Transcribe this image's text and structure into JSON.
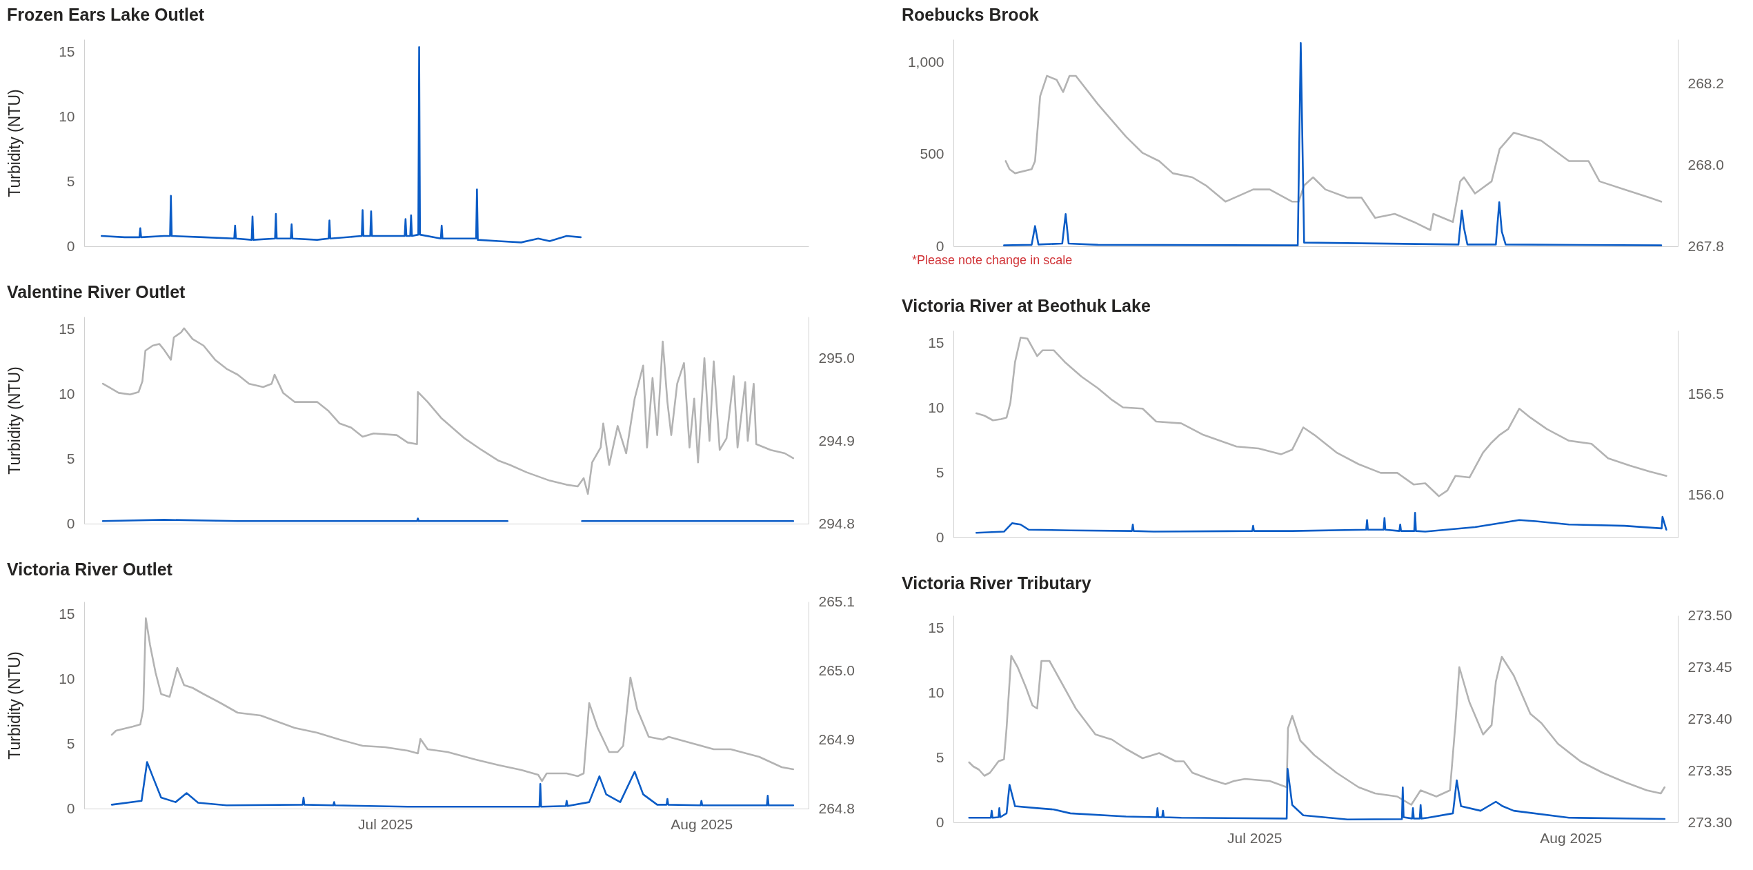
{
  "chart_data": [
    {
      "type": "line",
      "title": "Frozen Ears Lake Outlet",
      "ylabel": "Turbidity (NTU)",
      "tick_labels": "y",
      "xlim": [
        "2025-06-01T12:00",
        "2025-08-11T12:00"
      ],
      "ylim": [
        0,
        16
      ],
      "yticks": [
        0,
        5,
        10,
        15
      ],
      "series": [
        {
          "color": "#0b5cc6",
          "x": [
            "2025-06-03T05:00",
            "2025-06-05T11:00",
            "2025-06-06T22:00",
            "2025-06-07T00:00",
            "2025-06-07T02:00",
            "2025-06-09T08:00",
            "2025-06-09T22:00",
            "2025-06-10T00:00",
            "2025-06-10T02:00",
            "2025-06-13T05:00",
            "2025-06-16T05:00",
            "2025-06-16T07:00",
            "2025-06-16T09:00",
            "2025-06-17T22:00",
            "2025-06-18T00:00",
            "2025-06-18T02:00",
            "2025-06-20T05:00",
            "2025-06-20T07:00",
            "2025-06-20T09:00",
            "2025-06-21T18:00",
            "2025-06-21T20:00",
            "2025-06-21T22:00",
            "2025-06-24T08:00",
            "2025-06-25T11:00",
            "2025-06-25T13:00",
            "2025-06-25T15:00",
            "2025-06-28T17:00",
            "2025-06-28T19:00",
            "2025-06-28T21:00",
            "2025-06-29T13:00",
            "2025-06-29T15:00",
            "2025-06-29T17:00",
            "2025-07-02T22:00",
            "2025-07-03T00:00",
            "2025-07-03T02:00",
            "2025-07-03T11:00",
            "2025-07-03T13:00",
            "2025-07-03T15:00",
            "2025-07-04T06:00",
            "2025-07-04T08:00",
            "2025-07-04T10:00",
            "2025-07-06T11:00",
            "2025-07-06T13:00",
            "2025-07-06T15:00",
            "2025-07-09T22:00",
            "2025-07-10T00:00",
            "2025-07-10T02:00",
            "2025-07-12T03:00",
            "2025-07-14T08:00",
            "2025-07-16T00:00",
            "2025-07-17T03:00",
            "2025-07-18T19:00",
            "2025-07-20T04:00"
          ],
          "values": [
            0.8,
            0.7,
            0.7,
            1.4,
            0.7,
            0.8,
            0.8,
            3.9,
            0.8,
            0.7,
            0.6,
            1.6,
            0.6,
            0.5,
            2.3,
            0.5,
            0.6,
            2.5,
            0.6,
            0.6,
            1.7,
            0.6,
            0.5,
            0.6,
            2.0,
            0.6,
            0.8,
            2.8,
            0.8,
            0.8,
            2.7,
            0.8,
            0.8,
            2.1,
            0.8,
            0.8,
            2.4,
            0.8,
            0.9,
            15.4,
            0.9,
            0.6,
            1.6,
            0.6,
            0.6,
            4.4,
            0.5,
            0.4,
            0.3,
            0.6,
            0.4,
            0.8,
            0.7
          ]
        }
      ]
    },
    {
      "type": "line",
      "title": "Roebucks Brook",
      "tick_labels": "y",
      "xlim": [
        "2025-06-01T12:00",
        "2025-08-11T12:00"
      ],
      "ylim": [
        0,
        1125
      ],
      "yticks": [
        0,
        500,
        {
          "value": 1000,
          "label": "1,000"
        }
      ],
      "y2lim": [
        267.8,
        268.31
      ],
      "y2ticks": [
        267.8,
        {
          "value": 268,
          "label": "268.0"
        },
        268.2
      ],
      "annotations": [
        "*Please note change in scale"
      ],
      "series": [
        {
          "color": "#b3b3b3",
          "axis": "y2",
          "x": [
            "2025-06-06T15:00",
            "2025-06-07T00:00",
            "2025-06-07T13:00",
            "2025-06-09T04:00",
            "2025-06-09T12:00",
            "2025-06-10T00:00",
            "2025-06-10T16:00",
            "2025-06-11T15:00",
            "2025-06-12T06:00",
            "2025-06-12T21:00",
            "2025-06-13T12:00",
            "2025-06-15T16:00",
            "2025-06-18T10:00",
            "2025-06-20T01:00",
            "2025-06-21T16:00",
            "2025-06-23T00:00",
            "2025-06-24T22:00",
            "2025-06-26T06:00",
            "2025-06-28T04:00",
            "2025-06-30T21:00",
            "2025-07-02T12:00",
            "2025-07-04T17:00",
            "2025-07-05T08:00",
            "2025-07-05T21:00",
            "2025-07-06T18:00",
            "2025-07-07T23:00",
            "2025-07-10T03:00",
            "2025-07-11T12:00",
            "2025-07-12T20:00",
            "2025-07-14T18:00",
            "2025-07-16T15:00",
            "2025-07-18T06:00",
            "2025-07-18T13:00",
            "2025-07-20T11:00",
            "2025-07-21T04:00",
            "2025-07-21T13:00",
            "2025-07-22T15:00",
            "2025-07-24T06:00",
            "2025-07-25T01:00",
            "2025-07-26T10:00",
            "2025-07-29T03:00",
            "2025-07-31T20:00",
            "2025-08-02T18:00",
            "2025-08-03T20:00",
            "2025-08-06T07:00",
            "2025-08-08T18:00",
            "2025-08-09T21:00"
          ],
          "values": [
            268.01,
            267.99,
            267.98,
            267.99,
            268.01,
            268.17,
            268.22,
            268.21,
            268.18,
            268.22,
            268.22,
            268.15,
            268.07,
            268.03,
            268.01,
            267.98,
            267.97,
            267.95,
            267.91,
            267.94,
            267.94,
            267.91,
            267.91,
            267.95,
            267.97,
            267.94,
            267.92,
            267.92,
            267.87,
            267.88,
            267.86,
            267.84,
            267.88,
            267.86,
            267.96,
            267.97,
            267.93,
            267.96,
            268.04,
            268.08,
            268.06,
            268.01,
            268.01,
            267.96,
            267.94,
            267.92,
            267.91
          ]
        },
        {
          "color": "#0b5cc6",
          "x": [
            "2025-06-06T11:00",
            "2025-06-09T04:00",
            "2025-06-09T12:00",
            "2025-06-09T20:00",
            "2025-06-12T04:00",
            "2025-06-12T12:00",
            "2025-06-12T19:00",
            "2025-06-15T16:00",
            "2025-07-05T06:00",
            "2025-07-05T13:00",
            "2025-07-05T21:00",
            "2025-07-21T00:00",
            "2025-07-21T08:00",
            "2025-07-21T13:00",
            "2025-07-21T21:00",
            "2025-07-24T16:00",
            "2025-07-25T00:00",
            "2025-07-25T06:00",
            "2025-07-25T15:00",
            "2025-08-09T21:00"
          ],
          "values": [
            5,
            8,
            110,
            10,
            15,
            175,
            15,
            8,
            5,
            1105,
            20,
            10,
            195,
            100,
            10,
            10,
            240,
            80,
            10,
            5
          ]
        }
      ]
    },
    {
      "type": "line",
      "title": "Valentine River Outlet",
      "ylabel": "Turbidity (NTU)",
      "tick_labels": "y",
      "xlim": [
        "2025-06-01T12:00",
        "2025-08-11T12:00"
      ],
      "ylim": [
        0,
        16
      ],
      "yticks": [
        0,
        5,
        10,
        15
      ],
      "y2lim": [
        294.8,
        295.05
      ],
      "y2ticks": [
        294.8,
        294.9,
        {
          "value": 295,
          "label": "295.0"
        }
      ],
      "series": [
        {
          "color": "#b3b3b3",
          "axis": "y2",
          "x": [
            "2025-06-03T08:00",
            "2025-06-04T01:00",
            "2025-06-04T21:00",
            "2025-06-06T00:00",
            "2025-06-06T20:00",
            "2025-06-07T05:00",
            "2025-06-07T12:00",
            "2025-06-08T05:00",
            "2025-06-08T21:00",
            "2025-06-09T08:00",
            "2025-06-10T00:00",
            "2025-06-10T07:00",
            "2025-06-11T00:00",
            "2025-06-11T07:00",
            "2025-06-12T03:00",
            "2025-06-13T05:00",
            "2025-06-14T08:00",
            "2025-06-15T11:00",
            "2025-06-16T13:00",
            "2025-06-17T16:00",
            "2025-06-19T01:00",
            "2025-06-19T21:00",
            "2025-06-20T04:00",
            "2025-06-21T00:00",
            "2025-06-22T03:00",
            "2025-06-24T08:00",
            "2025-06-25T11:00",
            "2025-06-26T13:00",
            "2025-06-27T16:00",
            "2025-06-28T19:00",
            "2025-06-29T21:00",
            "2025-07-02T03:00",
            "2025-07-03T05:00",
            "2025-07-04T03:00",
            "2025-07-04T05:00",
            "2025-07-05T04:00",
            "2025-07-06T13:00",
            "2025-07-08T19:00",
            "2025-07-10T11:00",
            "2025-07-12T03:00",
            "2025-07-13T05:00",
            "2025-07-14T21:00",
            "2025-07-17T03:00",
            "2025-07-18T19:00",
            "2025-07-19T21:00",
            "2025-07-20T11:00",
            "2025-07-20T21:00",
            "2025-07-21T07:00",
            "2025-07-22T03:00",
            "2025-07-22T09:00",
            "2025-07-22T23:00",
            "2025-07-23T19:00",
            "2025-07-24T15:00",
            "2025-07-25T11:00",
            "2025-07-26T07:00",
            "2025-07-26T16:00",
            "2025-07-27T05:00",
            "2025-07-27T16:00",
            "2025-07-28T05:00",
            "2025-07-28T16:00",
            "2025-07-29T01:00",
            "2025-07-29T15:00",
            "2025-07-30T07:00",
            "2025-07-30T20:00",
            "2025-07-31T07:00",
            "2025-07-31T16:00",
            "2025-08-01T07:00",
            "2025-08-01T19:00",
            "2025-08-02T05:00",
            "2025-08-02T19:00",
            "2025-08-03T11:00",
            "2025-08-04T04:00",
            "2025-08-04T13:00",
            "2025-08-05T07:00",
            "2025-08-05T13:00",
            "2025-08-06T03:00",
            "2025-08-06T09:00",
            "2025-08-07T19:00",
            "2025-08-09T04:00",
            "2025-08-10T00:00"
          ],
          "values": [
            294.969,
            294.964,
            294.958,
            294.956,
            294.959,
            294.972,
            295.009,
            295.015,
            295.017,
            295.01,
            294.998,
            295.025,
            295.031,
            295.036,
            295.023,
            295.015,
            294.998,
            294.987,
            294.98,
            294.969,
            294.965,
            294.969,
            294.98,
            294.958,
            294.947,
            294.947,
            294.936,
            294.921,
            294.916,
            294.905,
            294.909,
            294.907,
            294.898,
            294.896,
            294.959,
            294.947,
            294.927,
            294.903,
            294.889,
            294.876,
            294.871,
            294.862,
            294.852,
            294.847,
            294.845,
            294.855,
            294.836,
            294.874,
            294.892,
            294.921,
            294.871,
            294.918,
            294.885,
            294.951,
            294.991,
            294.892,
            294.976,
            294.907,
            295.02,
            294.947,
            294.907,
            294.969,
            294.994,
            294.892,
            294.951,
            294.874,
            295.0,
            294.9,
            294.996,
            294.889,
            294.903,
            294.978,
            294.892,
            294.971,
            294.9,
            294.969,
            294.896,
            294.889,
            294.885,
            294.879
          ]
        },
        {
          "color": "#0b5cc6",
          "x": [
            "2025-06-03T08:00",
            "2025-06-09T08:00",
            "2025-06-16T13:00",
            "2025-07-04T03:00",
            "2025-07-04T05:00",
            "2025-07-04T07:00",
            "2025-07-13T00:00",
            "2025-07-16T12:00",
            "2025-07-20T07:00",
            "2025-07-31T00:00",
            "2025-08-10T00:00"
          ],
          "values": [
            0.2,
            0.3,
            0.2,
            0.2,
            0.4,
            0.2,
            0.2,
            null,
            0.2,
            0.2,
            0.2
          ]
        }
      ]
    },
    {
      "type": "line",
      "title": "Victoria River at Beothuk Lake",
      "tick_labels": "y",
      "xlim": [
        "2025-06-01T12:00",
        "2025-08-11T12:00"
      ],
      "ylim": [
        0,
        16
      ],
      "yticks": [
        0,
        5,
        10,
        15
      ],
      "y2lim": [
        155.79,
        156.815
      ],
      "y2ticks": [
        {
          "value": 156,
          "label": "156.0"
        },
        156.5
      ],
      "series": [
        {
          "color": "#b3b3b3",
          "axis": "y2",
          "x": [
            "2025-06-03T18:00",
            "2025-06-04T13:00",
            "2025-06-05T09:00",
            "2025-06-06T04:00",
            "2025-06-06T17:00",
            "2025-06-07T02:00",
            "2025-06-07T13:00",
            "2025-06-08T02:00",
            "2025-06-08T18:00",
            "2025-06-09T17:00",
            "2025-06-10T06:00",
            "2025-06-11T08:00",
            "2025-06-12T10:00",
            "2025-06-14T01:00",
            "2025-06-15T16:00",
            "2025-06-17T01:00",
            "2025-06-18T03:00",
            "2025-06-20T01:00",
            "2025-06-21T09:00",
            "2025-06-23T20:00",
            "2025-06-26T00:00",
            "2025-06-27T15:00",
            "2025-06-29T06:00",
            "2025-07-01T10:00",
            "2025-07-03T15:00",
            "2025-07-04T17:00",
            "2025-07-05T19:00",
            "2025-07-06T21:00",
            "2025-07-09T01:00",
            "2025-07-11T05:00",
            "2025-07-13T09:00",
            "2025-07-15T00:00",
            "2025-07-16T15:00",
            "2025-07-17T18:00",
            "2025-07-19T02:00",
            "2025-07-19T22:00",
            "2025-07-20T17:00",
            "2025-07-22T02:00",
            "2025-07-23T10:00",
            "2025-07-24T06:00",
            "2025-07-25T01:00",
            "2025-07-25T21:00",
            "2025-07-26T23:00",
            "2025-07-28T01:00",
            "2025-07-29T16:00",
            "2025-07-31T20:00",
            "2025-08-03T01:00",
            "2025-08-04T16:00",
            "2025-08-06T20:00",
            "2025-08-08T18:00",
            "2025-08-10T09:00"
          ],
          "values": [
            156.405,
            156.393,
            156.37,
            156.376,
            156.384,
            156.457,
            156.659,
            156.78,
            156.775,
            156.688,
            156.717,
            156.717,
            156.659,
            156.587,
            156.529,
            156.471,
            156.434,
            156.428,
            156.364,
            156.355,
            156.298,
            156.269,
            156.24,
            156.231,
            156.202,
            156.225,
            156.335,
            156.298,
            156.211,
            156.153,
            156.11,
            156.11,
            156.052,
            156.058,
            155.994,
            156.023,
            156.095,
            156.087,
            156.211,
            156.26,
            156.298,
            156.327,
            156.428,
            156.384,
            156.327,
            156.269,
            156.254,
            156.182,
            156.145,
            156.116,
            156.095
          ]
        },
        {
          "color": "#0b5cc6",
          "x": [
            "2025-06-03T18:00",
            "2025-06-06T11:00",
            "2025-06-07T06:00",
            "2025-06-08T02:00",
            "2025-06-08T21:00",
            "2025-06-12T23:00",
            "2025-06-19T00:00",
            "2025-06-19T02:00",
            "2025-06-19T04:00",
            "2025-06-21T03:00",
            "2025-06-30T19:00",
            "2025-06-30T21:00",
            "2025-06-30T23:00",
            "2025-07-04T17:00",
            "2025-07-11T23:00",
            "2025-07-12T01:00",
            "2025-07-12T03:00",
            "2025-07-13T16:00",
            "2025-07-13T18:00",
            "2025-07-13T20:00",
            "2025-07-15T05:00",
            "2025-07-15T07:00",
            "2025-07-15T09:00",
            "2025-07-16T16:00",
            "2025-07-16T18:00",
            "2025-07-16T20:00",
            "2025-07-17T18:00",
            "2025-07-22T15:00",
            "2025-07-26T23:00",
            "2025-07-28T14:00",
            "2025-07-31T20:00",
            "2025-08-06T07:00",
            "2025-08-09T22:00",
            "2025-08-10T00:00",
            "2025-08-10T09:00"
          ],
          "values": [
            0.36,
            0.45,
            1.1,
            1.0,
            0.6,
            0.55,
            0.5,
            1.0,
            0.5,
            0.45,
            0.5,
            0.9,
            0.5,
            0.5,
            0.6,
            1.35,
            0.6,
            0.6,
            1.5,
            0.6,
            0.5,
            1.0,
            0.5,
            0.5,
            1.9,
            0.5,
            0.45,
            0.8,
            1.35,
            1.25,
            1.0,
            0.9,
            0.7,
            1.6,
            0.6
          ]
        }
      ]
    },
    {
      "type": "line",
      "title": "Victoria River Outlet",
      "ylabel": "Turbidity (NTU)",
      "xlim": [
        "2025-06-01T12:00",
        "2025-08-11T12:00"
      ],
      "xticks": [
        {
          "value": "2025-07-01",
          "label": "Jul 2025"
        },
        {
          "value": "2025-08-01",
          "label": "Aug 2025"
        }
      ],
      "ylim": [
        0,
        16
      ],
      "yticks": [
        0,
        5,
        10,
        15
      ],
      "y2lim": [
        264.8,
        265.1
      ],
      "y2ticks": [
        264.8,
        264.9,
        {
          "value": 265,
          "label": "265.0"
        },
        265.1
      ],
      "series": [
        {
          "color": "#b3b3b3",
          "axis": "y2",
          "x": [
            "2025-06-04T05:00",
            "2025-06-04T15:00",
            "2025-06-05T11:00",
            "2025-06-06T07:00",
            "2025-06-07T00:00",
            "2025-06-07T07:00",
            "2025-06-07T13:00",
            "2025-06-07T23:00",
            "2025-06-08T12:00",
            "2025-06-09T01:00",
            "2025-06-09T21:00",
            "2025-06-10T15:00",
            "2025-06-11T07:00",
            "2025-06-12T03:00",
            "2025-06-13T05:00",
            "2025-06-14T21:00",
            "2025-06-16T13:00",
            "2025-06-18T19:00",
            "2025-06-20T11:00",
            "2025-06-22T03:00",
            "2025-06-24T08:00",
            "2025-06-26T13:00",
            "2025-06-28T19:00",
            "2025-07-01T00:00",
            "2025-07-03T05:00",
            "2025-07-04T05:00",
            "2025-07-04T11:00",
            "2025-07-05T04:00",
            "2025-07-07T03:00",
            "2025-07-09T21:00",
            "2025-07-12T03:00",
            "2025-07-14T08:00",
            "2025-07-16T00:00",
            "2025-07-16T09:00",
            "2025-07-16T20:00",
            "2025-07-18T19:00",
            "2025-07-19T21:00",
            "2025-07-20T11:00",
            "2025-07-21T00:00",
            "2025-07-21T20:00",
            "2025-07-22T23:00",
            "2025-07-23T19:00",
            "2025-07-24T08:00",
            "2025-07-25T01:00",
            "2025-07-25T17:00",
            "2025-07-26T20:00",
            "2025-07-28T05:00",
            "2025-07-28T19:00",
            "2025-07-31T00:00",
            "2025-08-02T05:00",
            "2025-08-03T21:00",
            "2025-08-06T16:00",
            "2025-08-08T21:00",
            "2025-08-10T00:00"
          ],
          "values": [
            264.907,
            264.913,
            264.916,
            264.919,
            264.922,
            264.944,
            265.076,
            265.037,
            264.997,
            264.966,
            264.962,
            265.004,
            264.979,
            264.975,
            264.966,
            264.953,
            264.939,
            264.935,
            264.926,
            264.917,
            264.91,
            264.9,
            264.891,
            264.889,
            264.884,
            264.88,
            264.901,
            264.886,
            264.882,
            264.871,
            264.863,
            264.856,
            264.849,
            264.84,
            264.851,
            264.851,
            264.847,
            264.851,
            264.953,
            264.917,
            264.882,
            264.882,
            264.891,
            264.99,
            264.944,
            264.904,
            264.9,
            264.904,
            264.895,
            264.886,
            264.886,
            264.875,
            264.86,
            264.857
          ]
        },
        {
          "color": "#0b5cc6",
          "x": [
            "2025-06-04T05:00",
            "2025-06-07T03:00",
            "2025-06-07T16:00",
            "2025-06-08T05:00",
            "2025-06-09T01:00",
            "2025-06-10T11:00",
            "2025-06-11T13:00",
            "2025-06-12T16:00",
            "2025-06-15T11:00",
            "2025-06-22T22:00",
            "2025-06-23T00:00",
            "2025-06-23T02:00",
            "2025-06-25T22:00",
            "2025-06-26T00:00",
            "2025-06-26T02:00",
            "2025-07-03T05:00",
            "2025-07-16T03:00",
            "2025-07-16T05:00",
            "2025-07-16T07:00",
            "2025-07-18T17:00",
            "2025-07-18T19:00",
            "2025-07-18T21:00",
            "2025-07-21T00:00",
            "2025-07-22T00:00",
            "2025-07-22T16:00",
            "2025-07-24T01:00",
            "2025-07-25T11:00",
            "2025-07-26T07:00",
            "2025-07-27T16:00",
            "2025-07-28T14:00",
            "2025-07-28T16:00",
            "2025-07-28T18:00",
            "2025-07-31T22:00",
            "2025-08-01T00:00",
            "2025-08-01T02:00",
            "2025-08-07T10:00",
            "2025-08-07T12:00",
            "2025-08-07T14:00",
            "2025-08-10T00:00"
          ],
          "values": [
            0.3,
            0.6,
            3.6,
            2.5,
            0.85,
            0.5,
            1.2,
            0.45,
            0.25,
            0.3,
            0.85,
            0.3,
            0.25,
            0.5,
            0.25,
            0.15,
            0.15,
            1.9,
            0.15,
            0.2,
            0.6,
            0.2,
            0.5,
            2.5,
            1.1,
            0.5,
            2.85,
            1.1,
            0.3,
            0.3,
            0.75,
            0.3,
            0.25,
            0.6,
            0.25,
            0.25,
            1.0,
            0.25,
            0.25
          ]
        }
      ]
    },
    {
      "type": "line",
      "title": "Victoria River Tributary",
      "xlim": [
        "2025-06-01T12:00",
        "2025-08-11T12:00"
      ],
      "xticks": [
        {
          "value": "2025-07-01",
          "label": "Jul 2025"
        },
        {
          "value": "2025-08-01",
          "label": "Aug 2025"
        }
      ],
      "ylim": [
        0,
        16
      ],
      "yticks": [
        0,
        5,
        10,
        15
      ],
      "y2lim": [
        273.3,
        273.5
      ],
      "y2ticks": [
        {
          "value": 273.3,
          "label": "273.30"
        },
        273.35,
        {
          "value": 273.4,
          "label": "273.40"
        },
        273.45,
        {
          "value": 273.5,
          "label": "273.50"
        }
      ],
      "series": [
        {
          "color": "#b3b3b3",
          "axis": "y2",
          "x": [
            "2025-06-03T01:00",
            "2025-06-03T11:00",
            "2025-06-04T00:00",
            "2025-06-04T13:00",
            "2025-06-05T02:00",
            "2025-06-05T22:00",
            "2025-06-06T11:00",
            "2025-06-06T17:00",
            "2025-06-07T04:00",
            "2025-06-07T19:00",
            "2025-06-08T15:00",
            "2025-06-09T06:00",
            "2025-06-09T17:00",
            "2025-06-10T03:00",
            "2025-06-10T22:00",
            "2025-06-11T21:00",
            "2025-06-13T12:00",
            "2025-06-15T10:00",
            "2025-06-17T01:00",
            "2025-06-18T10:00",
            "2025-06-20T01:00",
            "2025-06-21T16:00",
            "2025-06-23T07:00",
            "2025-06-24T02:00",
            "2025-06-24T22:00",
            "2025-06-26T13:00",
            "2025-06-28T04:00",
            "2025-06-29T00:00",
            "2025-06-30T02:00",
            "2025-07-02T12:00",
            "2025-07-04T04:00",
            "2025-07-04T07:00",
            "2025-07-04T17:00",
            "2025-07-05T12:00",
            "2025-07-06T21:00",
            "2025-07-09T01:00",
            "2025-07-11T05:00",
            "2025-07-12T20:00",
            "2025-07-15T00:00",
            "2025-07-16T09:00",
            "2025-07-17T07:00",
            "2025-07-18T20:00",
            "2025-07-20T04:00",
            "2025-07-20T17:00",
            "2025-07-21T02:00",
            "2025-07-22T02:00",
            "2025-07-23T10:00",
            "2025-07-24T06:00",
            "2025-07-24T16:00",
            "2025-07-25T06:00",
            "2025-07-26T10:00",
            "2025-07-28T01:00",
            "2025-07-29T03:00",
            "2025-07-30T18:00",
            "2025-08-01T23:00",
            "2025-08-04T03:00",
            "2025-08-06T07:00",
            "2025-08-08T11:00",
            "2025-08-09T20:00",
            "2025-08-10T05:00"
          ],
          "values": [
            273.358,
            273.354,
            273.351,
            273.345,
            273.348,
            273.359,
            273.361,
            273.391,
            273.461,
            273.45,
            273.43,
            273.413,
            273.41,
            273.456,
            273.456,
            273.439,
            273.41,
            273.385,
            273.38,
            273.371,
            273.362,
            273.367,
            273.359,
            273.359,
            273.348,
            273.342,
            273.337,
            273.34,
            273.342,
            273.34,
            273.334,
            273.391,
            273.403,
            273.379,
            273.365,
            273.348,
            273.334,
            273.328,
            273.325,
            273.317,
            273.331,
            273.325,
            273.331,
            273.396,
            273.45,
            273.416,
            273.385,
            273.394,
            273.436,
            273.46,
            273.442,
            273.405,
            273.396,
            273.376,
            273.359,
            273.348,
            273.339,
            273.331,
            273.328,
            273.334
          ]
        },
        {
          "color": "#0b5cc6",
          "x": [
            "2025-06-03T01:00",
            "2025-06-05T04:00",
            "2025-06-05T06:00",
            "2025-06-05T08:00",
            "2025-06-05T22:00",
            "2025-06-06T00:00",
            "2025-06-06T02:00",
            "2025-06-06T17:00",
            "2025-06-07T00:00",
            "2025-06-07T13:00",
            "2025-06-09T17:00",
            "2025-06-11T08:00",
            "2025-06-12T23:00",
            "2025-06-18T10:00",
            "2025-06-21T10:00",
            "2025-06-21T12:00",
            "2025-06-21T14:00",
            "2025-06-21T23:00",
            "2025-06-22T01:00",
            "2025-06-22T03:00",
            "2025-06-23T20:00",
            "2025-07-04T04:00",
            "2025-07-04T06:00",
            "2025-07-04T17:00",
            "2025-07-05T19:00",
            "2025-07-10T03:00",
            "2025-07-15T11:00",
            "2025-07-15T13:00",
            "2025-07-15T15:00",
            "2025-07-16T11:00",
            "2025-07-16T13:00",
            "2025-07-16T15:00",
            "2025-07-17T05:00",
            "2025-07-17T07:00",
            "2025-07-17T09:00",
            "2025-07-18T00:00",
            "2025-07-20T11:00",
            "2025-07-20T20:00",
            "2025-07-21T06:00",
            "2025-07-23T04:00",
            "2025-07-24T16:00",
            "2025-07-25T08:00",
            "2025-07-26T10:00",
            "2025-07-31T20:00",
            "2025-08-10T05:00"
          ],
          "values": [
            0.36,
            0.36,
            0.9,
            0.36,
            0.4,
            1.1,
            0.4,
            0.7,
            2.9,
            1.25,
            1.1,
            1.0,
            0.7,
            0.45,
            0.4,
            1.1,
            0.4,
            0.4,
            0.9,
            0.4,
            0.36,
            0.3,
            4.15,
            1.35,
            0.55,
            0.23,
            0.25,
            2.7,
            0.4,
            0.3,
            1.1,
            0.3,
            0.3,
            1.35,
            0.3,
            0.36,
            0.7,
            3.25,
            1.25,
            0.9,
            1.6,
            1.25,
            0.9,
            0.36,
            0.27
          ]
        }
      ]
    }
  ]
}
